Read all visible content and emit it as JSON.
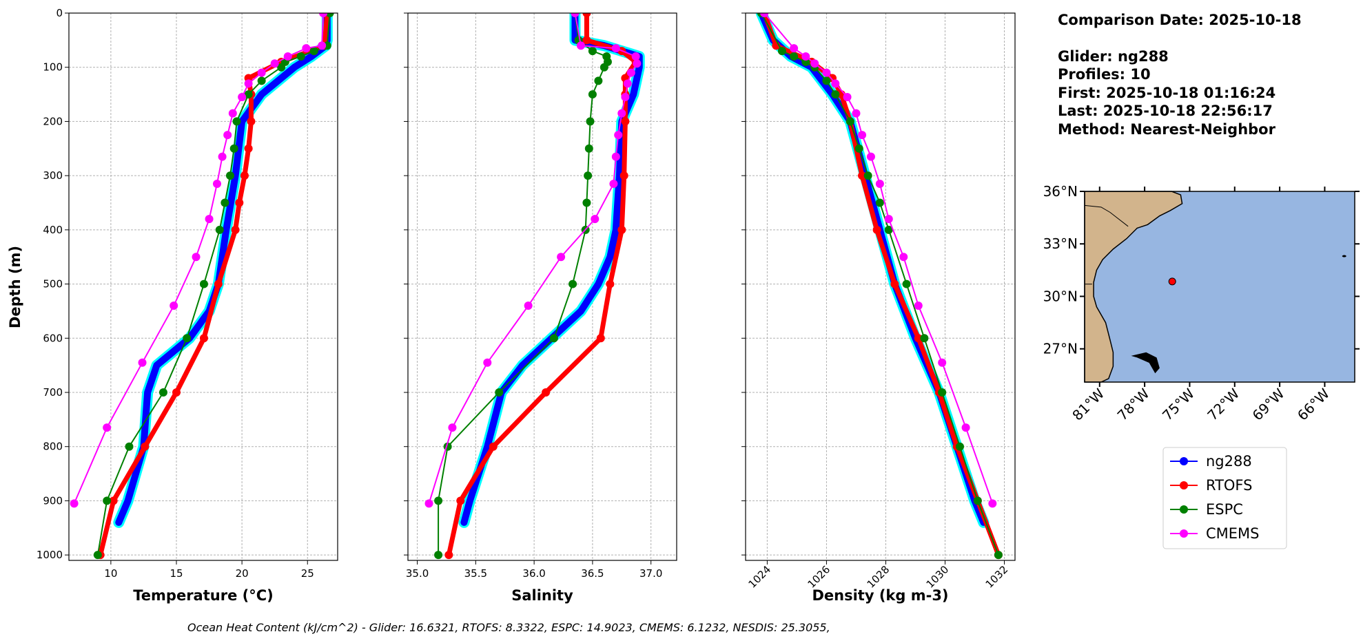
{
  "info": {
    "comparison_date": "Comparison Date: 2025-10-18",
    "glider": "Glider: ng288",
    "profiles": "Profiles: 10",
    "first": "First: 2025-10-18 01:16:24",
    "last": "Last: 2025-10-18 22:56:17",
    "method": "Method: Nearest-Neighbor"
  },
  "footer": "Ocean Heat Content (kJ/cm^2) - Glider: 16.6321,  RTOFS: 8.3322,  ESPC: 14.9023,  CMEMS: 6.1232,  NESDIS: 25.3055,",
  "legend": [
    {
      "label": "ng288",
      "color": "#0000ff"
    },
    {
      "label": "RTOFS",
      "color": "#ff0000"
    },
    {
      "label": "ESPC",
      "color": "#008000"
    },
    {
      "label": "CMEMS",
      "color": "#ff00ff"
    }
  ],
  "map": {
    "lat_ticks": [
      "36°N",
      "33°N",
      "30°N",
      "27°N"
    ],
    "lat_values": [
      36,
      33,
      30,
      27
    ],
    "lon_ticks": [
      "81°W",
      "78°W",
      "75°W",
      "72°W",
      "69°W",
      "66°W"
    ],
    "lon_values": [
      -81,
      -78,
      -75,
      -72,
      -69,
      -66
    ],
    "extent": {
      "lon": [
        -82,
        -64
      ],
      "lat": [
        25.1,
        36
      ]
    },
    "glider_position": {
      "lon": -76.16,
      "lat": 30.85
    },
    "land_color": "#d2b48c",
    "ocean_color": "#97b6e1"
  },
  "chart_data": [
    {
      "type": "line",
      "xlabel": "Temperature (°C)",
      "ylabel": "Depth (m)",
      "xlim": [
        6.8,
        27.3
      ],
      "ylim": [
        1010,
        0
      ],
      "xticks": [
        10,
        15,
        20,
        25
      ],
      "xtick_labels": [
        "10",
        "15",
        "20",
        "25"
      ],
      "yticks": [
        0,
        100,
        200,
        300,
        400,
        500,
        600,
        700,
        800,
        900,
        1000
      ],
      "ytick_labels": [
        "0",
        "100",
        "200",
        "300",
        "400",
        "500",
        "600",
        "700",
        "800",
        "900",
        "1000"
      ],
      "grid": true,
      "series": [
        {
          "name": "ng288",
          "depth": [
            0,
            50,
            60,
            80,
            100,
            150,
            200,
            300,
            400,
            500,
            550,
            600,
            650,
            700,
            800,
            900,
            940
          ],
          "values": [
            26.5,
            26.5,
            26.4,
            25.3,
            24,
            21.5,
            20,
            19.5,
            18.8,
            18.2,
            17.5,
            16,
            13.5,
            12.8,
            12.5,
            11.3,
            10.6
          ]
        },
        {
          "name": "RTOFS",
          "depth": [
            0,
            60,
            90,
            120,
            150,
            200,
            250,
            300,
            350,
            400,
            500,
            600,
            700,
            800,
            900,
            1000
          ],
          "values": [
            26.5,
            26.3,
            23,
            20.5,
            20.7,
            20.7,
            20.5,
            20.2,
            19.8,
            19.5,
            18.2,
            17.1,
            15,
            12.6,
            10.2,
            9.2
          ]
        },
        {
          "name": "ESPC",
          "depth": [
            0,
            60,
            70,
            80,
            90,
            100,
            125,
            150,
            200,
            250,
            300,
            350,
            400,
            500,
            600,
            700,
            800,
            900,
            1000
          ],
          "values": [
            26.7,
            26.5,
            25.5,
            24.5,
            23.3,
            23,
            21.5,
            20.5,
            19.6,
            19.4,
            19.1,
            18.7,
            18.3,
            17.1,
            15.8,
            14,
            11.4,
            9.7,
            9.0
          ]
        },
        {
          "name": "CMEMS",
          "depth": [
            0,
            60,
            65,
            80,
            93,
            110,
            130,
            155,
            185,
            225,
            265,
            315,
            380,
            450,
            540,
            645,
            765,
            905
          ],
          "values": [
            26.2,
            26.1,
            24.9,
            23.5,
            22.5,
            21.5,
            20.5,
            20,
            19.3,
            18.9,
            18.5,
            18.1,
            17.5,
            16.5,
            14.8,
            12.4,
            9.7,
            7.2
          ]
        }
      ]
    },
    {
      "type": "line",
      "xlabel": "Salinity",
      "xlim": [
        34.92,
        37.22
      ],
      "ylim": [
        1010,
        0
      ],
      "xticks": [
        35.0,
        35.5,
        36.0,
        36.5,
        37.0
      ],
      "xtick_labels": [
        "35.0",
        "35.5",
        "36.0",
        "36.5",
        "37.0"
      ],
      "grid": true,
      "series": [
        {
          "name": "ng288",
          "depth": [
            0,
            50,
            60,
            80,
            100,
            150,
            200,
            300,
            400,
            450,
            500,
            550,
            600,
            650,
            700,
            800,
            900,
            940
          ],
          "values": [
            36.35,
            36.35,
            36.6,
            36.9,
            36.9,
            36.85,
            36.75,
            36.73,
            36.7,
            36.65,
            36.55,
            36.4,
            36.15,
            35.9,
            35.72,
            35.6,
            35.45,
            35.4
          ]
        },
        {
          "name": "RTOFS",
          "depth": [
            0,
            50,
            70,
            90,
            120,
            150,
            200,
            300,
            400,
            500,
            600,
            700,
            800,
            900,
            1000
          ],
          "values": [
            36.45,
            36.45,
            36.75,
            36.87,
            36.78,
            36.78,
            36.78,
            36.77,
            36.75,
            36.65,
            36.57,
            36.1,
            35.65,
            35.37,
            35.27
          ]
        },
        {
          "name": "ESPC",
          "depth": [
            0,
            50,
            70,
            80,
            90,
            100,
            125,
            150,
            200,
            250,
            300,
            350,
            400,
            500,
            600,
            700,
            800,
            900,
            1000
          ],
          "values": [
            36.35,
            36.38,
            36.5,
            36.62,
            36.63,
            36.6,
            36.55,
            36.5,
            36.48,
            36.47,
            36.46,
            36.45,
            36.44,
            36.33,
            36.17,
            35.7,
            35.26,
            35.18,
            35.18
          ]
        },
        {
          "name": "CMEMS",
          "depth": [
            0,
            60,
            65,
            80,
            93,
            110,
            130,
            155,
            185,
            225,
            265,
            315,
            380,
            450,
            540,
            645,
            765,
            905
          ],
          "values": [
            36.35,
            36.4,
            36.7,
            36.87,
            36.88,
            36.83,
            36.8,
            36.78,
            36.75,
            36.72,
            36.7,
            36.68,
            36.52,
            36.23,
            35.95,
            35.6,
            35.3,
            35.1
          ]
        }
      ]
    },
    {
      "type": "line",
      "xlabel": "Density (kg m-3)",
      "xlim": [
        1023.27,
        1032.36
      ],
      "ylim": [
        1010,
        0
      ],
      "xticks": [
        1024,
        1026,
        1028,
        1030,
        1032
      ],
      "xtick_labels": [
        "1024",
        "1026",
        "1028",
        "1030",
        "1032"
      ],
      "grid": true,
      "series": [
        {
          "name": "ng288",
          "depth": [
            0,
            50,
            80,
            100,
            150,
            200,
            300,
            400,
            500,
            600,
            700,
            800,
            900,
            940
          ],
          "values": [
            1023.8,
            1024.2,
            1024.8,
            1025.5,
            1026.2,
            1026.8,
            1027.3,
            1027.8,
            1028.3,
            1029,
            1029.8,
            1030.4,
            1031,
            1031.3
          ]
        },
        {
          "name": "RTOFS",
          "depth": [
            0,
            60,
            90,
            120,
            150,
            200,
            300,
            400,
            500,
            600,
            700,
            800,
            900,
            1000
          ],
          "values": [
            1023.9,
            1024.3,
            1025.5,
            1026.2,
            1026.5,
            1026.8,
            1027.2,
            1027.7,
            1028.3,
            1029.1,
            1029.8,
            1030.4,
            1031.1,
            1031.8
          ]
        },
        {
          "name": "ESPC",
          "depth": [
            0,
            70,
            80,
            90,
            100,
            125,
            150,
            200,
            250,
            300,
            350,
            400,
            500,
            600,
            700,
            800,
            900,
            1000
          ],
          "values": [
            1023.8,
            1024.5,
            1024.9,
            1025.3,
            1025.6,
            1026.0,
            1026.3,
            1026.8,
            1027.1,
            1027.4,
            1027.8,
            1028.1,
            1028.7,
            1029.3,
            1029.9,
            1030.5,
            1031.1,
            1031.8
          ]
        },
        {
          "name": "CMEMS",
          "depth": [
            0,
            65,
            80,
            93,
            110,
            130,
            155,
            185,
            225,
            265,
            315,
            380,
            450,
            540,
            645,
            765,
            905
          ],
          "values": [
            1023.9,
            1024.9,
            1025.3,
            1025.6,
            1026.0,
            1026.3,
            1026.7,
            1027.0,
            1027.2,
            1027.5,
            1027.8,
            1028.1,
            1028.6,
            1029.1,
            1029.9,
            1030.7,
            1031.6
          ]
        }
      ]
    }
  ]
}
